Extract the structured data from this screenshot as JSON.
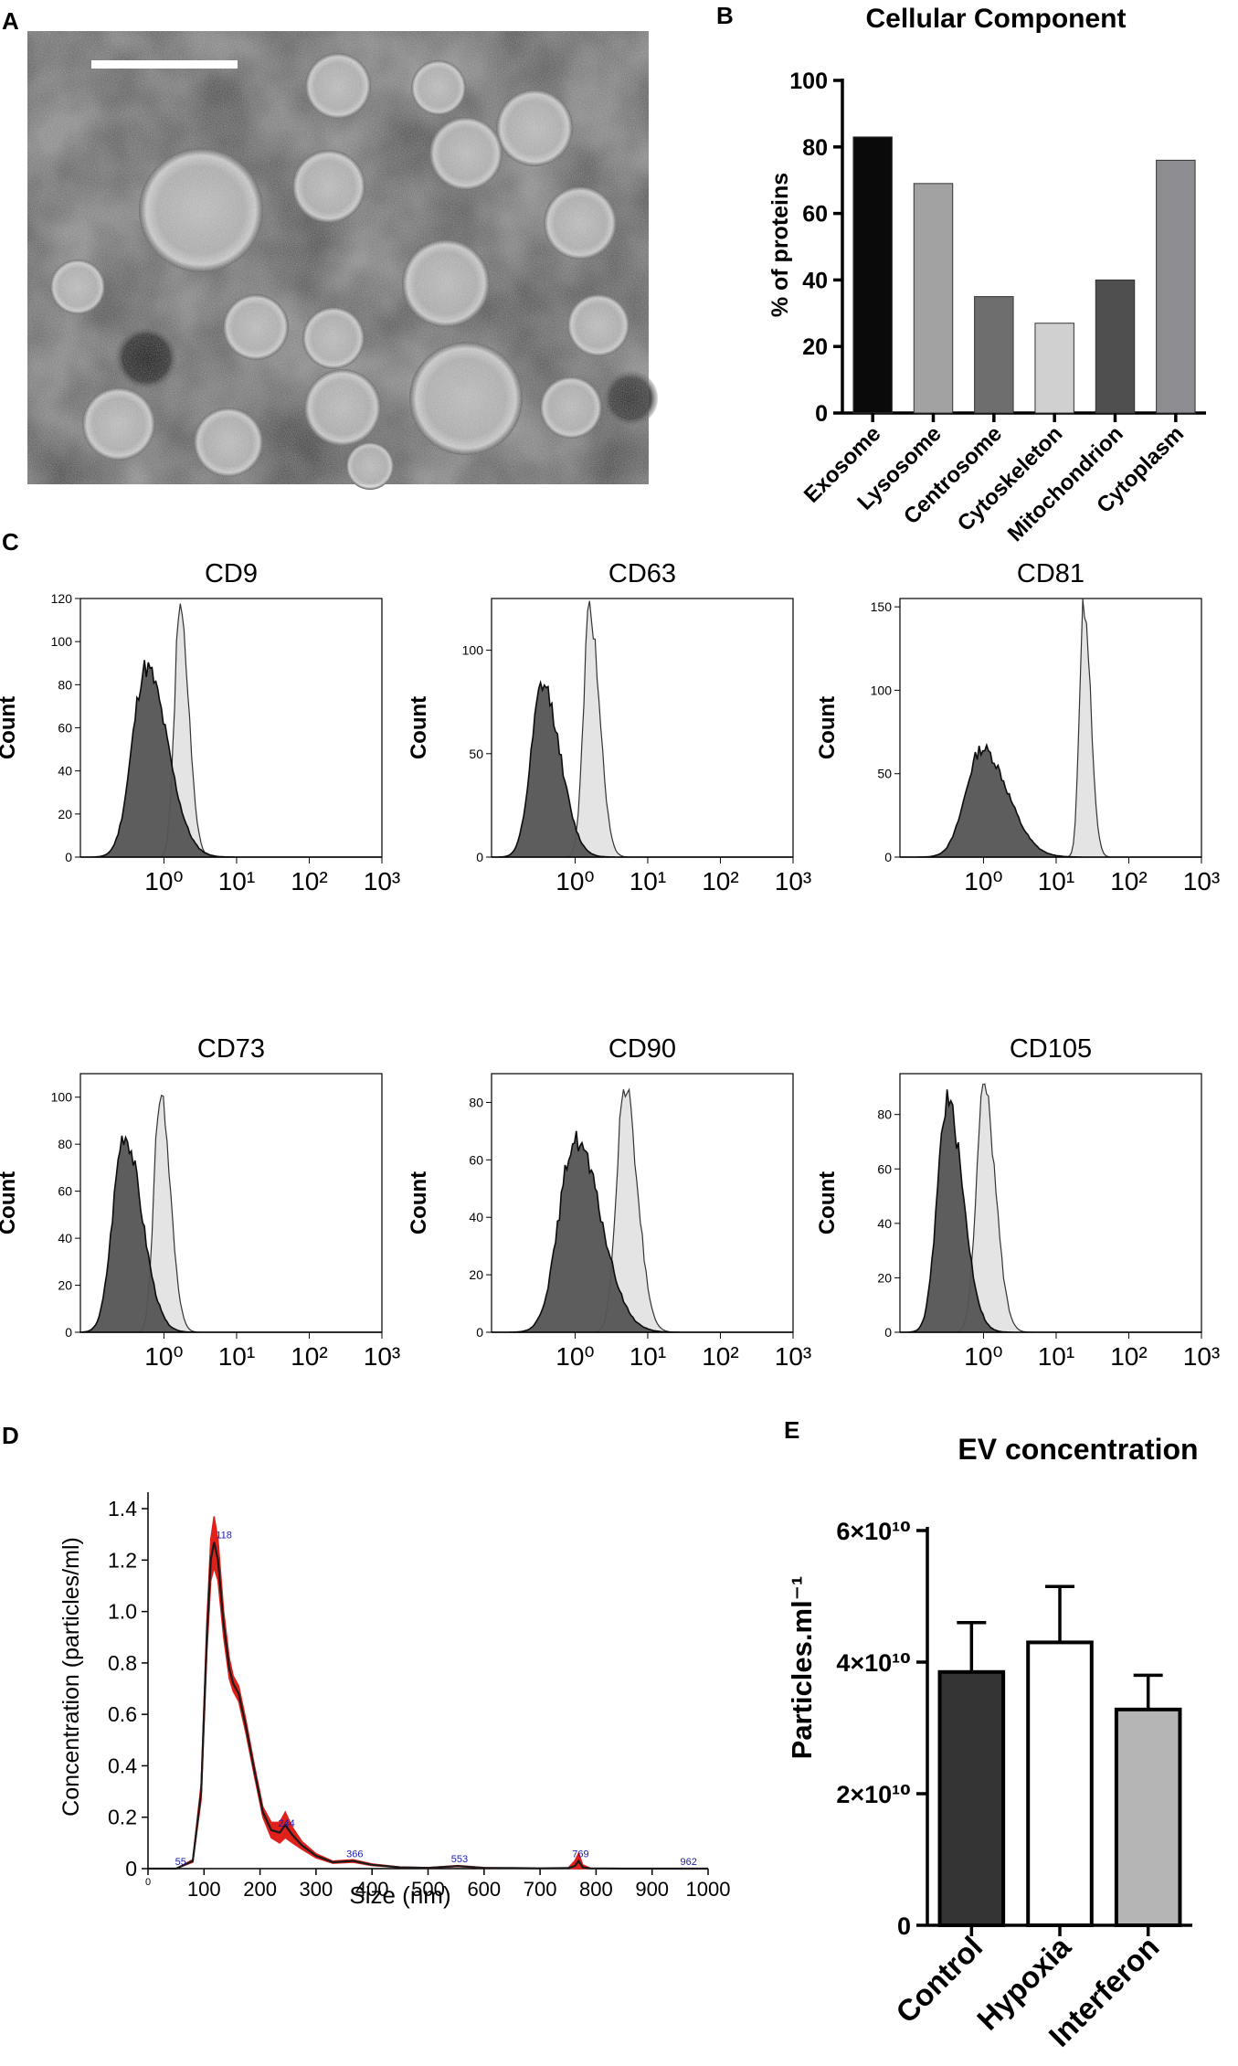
{
  "panel_letters": {
    "a": "A",
    "b": "B",
    "c": "C",
    "d": "D",
    "e": "E"
  },
  "colors": {
    "neg_fill": "#555555",
    "pos_fill": "#e4e4e4",
    "nta_band": "#e0201a",
    "nta_line": "#1a1a1a",
    "nta_label": "#1a1ab4"
  },
  "chart_data": [
    {
      "id": "B",
      "type": "bar",
      "title": "Cellular Component",
      "ylabel": "% of proteins",
      "ylim": [
        0,
        100
      ],
      "yticks": [
        0,
        20,
        40,
        60,
        80,
        100
      ],
      "categories": [
        "Exosome",
        "Lysosome",
        "Centrosome",
        "Cytoskeleton",
        "Mitochondrion",
        "Cytoplasm"
      ],
      "values": [
        83,
        69,
        35,
        27,
        40,
        76
      ],
      "colors": [
        "#0a0a0a",
        "#a2a2a2",
        "#6e6e6e",
        "#d0d0d0",
        "#4f4f4f",
        "#8d8d91"
      ]
    },
    {
      "id": "C",
      "type": "histogram-overlay",
      "ylabel": "Count",
      "xscale": "log",
      "xticks": [
        "10⁰",
        "10¹",
        "10²",
        "10³"
      ],
      "panels": [
        {
          "title": "CD9",
          "ymax": 120,
          "yticks": [
            "0",
            "20",
            "40",
            "60",
            "80",
            "100",
            "120"
          ],
          "neg_peak_log": -0.25,
          "neg_height": 88,
          "neg_width": 0.22,
          "pos_peak_log": 0.22,
          "pos_height": 115,
          "pos_width": 0.09
        },
        {
          "title": "CD63",
          "ymax": 125,
          "yticks": [
            "0",
            "50",
            "100"
          ],
          "neg_peak_log": -0.45,
          "neg_height": 83,
          "neg_width": 0.18,
          "pos_peak_log": 0.2,
          "pos_height": 120,
          "pos_width": 0.1
        },
        {
          "title": "CD81",
          "ymax": 155,
          "yticks": [
            "0",
            "50",
            "100",
            "150"
          ],
          "neg_peak_log": -0.02,
          "neg_height": 65,
          "neg_width": 0.26,
          "pos_peak_log": 1.38,
          "pos_height": 153,
          "pos_width": 0.07
        },
        {
          "title": "CD73",
          "ymax": 110,
          "yticks": [
            "0",
            "20",
            "40",
            "60",
            "80",
            "100"
          ],
          "neg_peak_log": -0.55,
          "neg_height": 84,
          "neg_width": 0.18,
          "pos_peak_log": -0.05,
          "pos_height": 104,
          "pos_width": 0.1
        },
        {
          "title": "CD90",
          "ymax": 90,
          "yticks": [
            "0",
            "20",
            "40",
            "60",
            "80"
          ],
          "neg_peak_log": 0.0,
          "neg_height": 67,
          "neg_width": 0.26,
          "pos_peak_log": 0.68,
          "pos_height": 86,
          "pos_width": 0.13
        },
        {
          "title": "CD105",
          "ymax": 95,
          "yticks": [
            "0",
            "20",
            "40",
            "60",
            "80"
          ],
          "neg_peak_log": -0.5,
          "neg_height": 85,
          "neg_width": 0.16,
          "pos_peak_log": 0.0,
          "pos_height": 90,
          "pos_width": 0.12
        }
      ]
    },
    {
      "id": "D",
      "type": "line",
      "xlabel": "Size (nm)",
      "ylabel": "Concentration (particles/ml)",
      "xlim": [
        0,
        1000
      ],
      "ylim": [
        0,
        1.45
      ],
      "xticks": [
        0,
        100,
        200,
        300,
        400,
        500,
        600,
        700,
        800,
        900,
        1000
      ],
      "yticks": [
        0,
        0.2,
        0.4,
        0.6,
        0.8,
        1.0,
        1.2,
        1.4
      ],
      "ytick_labels": [
        "0",
        "0.2",
        "0.4",
        "0.6",
        "0.8",
        "1.0",
        "1.2",
        "1.4"
      ],
      "x": [
        0,
        50,
        80,
        95,
        105,
        112,
        118,
        125,
        135,
        145,
        152,
        162,
        175,
        190,
        205,
        220,
        235,
        245,
        258,
        275,
        300,
        330,
        366,
        400,
        450,
        500,
        553,
        600,
        650,
        700,
        750,
        762,
        769,
        776,
        790,
        850,
        962,
        1000
      ],
      "y": [
        0,
        0.0,
        0.03,
        0.3,
        0.9,
        1.2,
        1.27,
        1.2,
        0.95,
        0.78,
        0.72,
        0.68,
        0.55,
        0.38,
        0.22,
        0.15,
        0.14,
        0.17,
        0.13,
        0.09,
        0.05,
        0.025,
        0.03,
        0.015,
        0.005,
        0.003,
        0.01,
        0.003,
        0.002,
        0.001,
        0.002,
        0.01,
        0.03,
        0.005,
        0.001,
        0.0,
        0.0,
        0.0
      ],
      "band_halfwidth": [
        0,
        0.0,
        0.005,
        0.03,
        0.06,
        0.08,
        0.1,
        0.08,
        0.05,
        0.04,
        0.03,
        0.03,
        0.025,
        0.02,
        0.02,
        0.03,
        0.04,
        0.05,
        0.03,
        0.015,
        0.008,
        0.004,
        0.005,
        0.003,
        0.001,
        0.001,
        0.002,
        0.001,
        0.0,
        0.0,
        0.0,
        0.02,
        0.03,
        0.01,
        0.0,
        0.0,
        0.0,
        0.0
      ],
      "peak_labels": [
        {
          "x": 55,
          "y": 0.0,
          "text": "55"
        },
        {
          "x": 118,
          "y": 1.27,
          "text": "118"
        },
        {
          "x": 244,
          "y": 0.15,
          "text": "244"
        },
        {
          "x": 366,
          "y": 0.03,
          "text": "366"
        },
        {
          "x": 553,
          "y": 0.01,
          "text": "553"
        },
        {
          "x": 769,
          "y": 0.03,
          "text": "769"
        },
        {
          "x": 962,
          "y": 0.0,
          "text": "962"
        }
      ]
    },
    {
      "id": "E",
      "type": "bar",
      "title": "EV concentration",
      "ylabel": "Particles.ml⁻¹",
      "ylim": [
        0,
        60000000000.0
      ],
      "yticks": [
        0,
        20000000000.0,
        40000000000.0,
        60000000000.0
      ],
      "ytick_labels": [
        "0",
        "2×10¹⁰",
        "4×10¹⁰",
        "6×10¹⁰"
      ],
      "categories": [
        "Control",
        "Hypoxia",
        "Interferon"
      ],
      "values": [
        38500000000.0,
        43000000000.0,
        32800000000.0
      ],
      "errors": [
        7500000000.0,
        8500000000.0,
        5200000000.0
      ],
      "colors": [
        "#333333",
        "#ffffff",
        "#b5b5b5"
      ]
    }
  ]
}
